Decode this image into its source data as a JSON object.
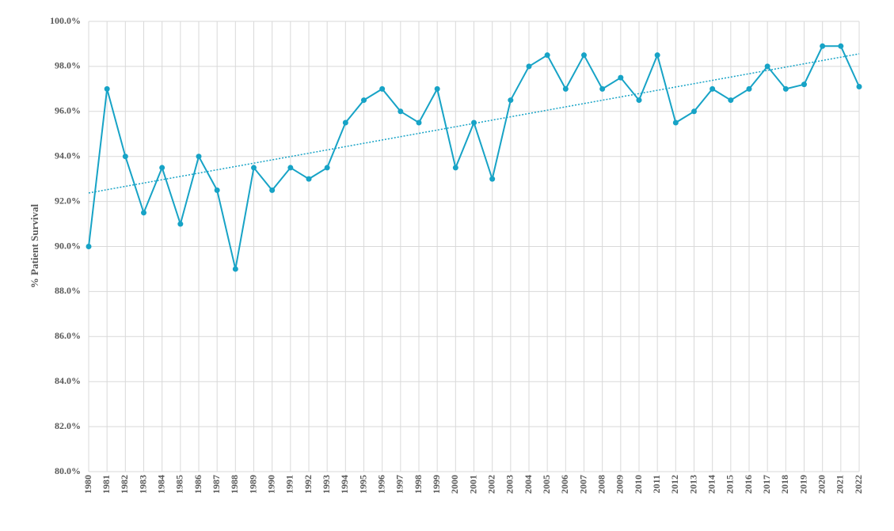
{
  "chart_data": {
    "type": "line",
    "y_label": "% Patient Survival",
    "categories": [
      "1980",
      "1981",
      "1982",
      "1983",
      "1984",
      "1985",
      "1986",
      "1987",
      "1988",
      "1989",
      "1990",
      "1991",
      "1992",
      "1993",
      "1994",
      "1995",
      "1996",
      "1997",
      "1998",
      "1999",
      "2000",
      "2001",
      "2002",
      "2003",
      "2004",
      "2005",
      "2006",
      "2007",
      "2008",
      "2009",
      "2010",
      "2011",
      "2012",
      "2013",
      "2014",
      "2015",
      "2016",
      "2017",
      "2018",
      "2019",
      "2020",
      "2021",
      "2022"
    ],
    "series": [
      {
        "color": "#17a3c6",
        "values": [
          90.0,
          97.0,
          94.0,
          91.5,
          93.5,
          91.0,
          94.0,
          92.5,
          89.0,
          93.5,
          92.5,
          93.5,
          93.0,
          93.5,
          95.5,
          96.5,
          97.0,
          96.0,
          95.5,
          97.0,
          93.5,
          95.5,
          93.0,
          96.5,
          98.0,
          98.5,
          97.0,
          98.5,
          97.0,
          97.5,
          96.5,
          98.5,
          95.5,
          96.0,
          97.0,
          96.5,
          97.0,
          98.0,
          97.0,
          97.2,
          98.9,
          98.9,
          97.1
        ]
      }
    ],
    "trendline": "linear",
    "ylim": [
      80,
      100
    ],
    "yticks": [
      {
        "value": 80,
        "label": "80.0%"
      },
      {
        "value": 82,
        "label": "82.0%"
      },
      {
        "value": 84,
        "label": "84.0%"
      },
      {
        "value": 86,
        "label": "86.0%"
      },
      {
        "value": 88,
        "label": "88.0%"
      },
      {
        "value": 90,
        "label": "90.0%"
      },
      {
        "value": 92,
        "label": "92.0%"
      },
      {
        "value": 94,
        "label": "94.0%"
      },
      {
        "value": 96,
        "label": "96.0%"
      },
      {
        "value": 98,
        "label": "98.0%"
      },
      {
        "value": 100,
        "label": "100.0%"
      }
    ],
    "grid": true
  }
}
